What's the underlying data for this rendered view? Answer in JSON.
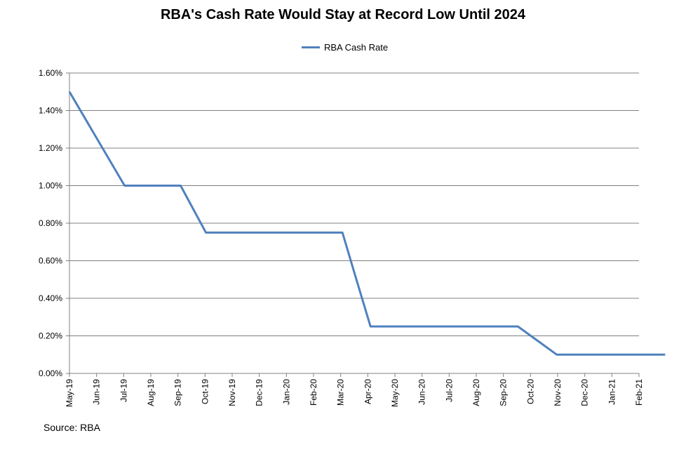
{
  "chart_data": {
    "type": "line",
    "title": "RBA's Cash Rate Would Stay at Record Low Until 2024",
    "xlabel": "",
    "ylabel": "",
    "categories": [
      "May-19",
      "Jun-19",
      "Jul-19",
      "Aug-19",
      "Sep-19",
      "Oct-19",
      "Nov-19",
      "Dec-19",
      "Jan-20",
      "Feb-20",
      "Mar-20",
      "Apr-20",
      "May-20",
      "Jun-20",
      "Jul-20",
      "Aug-20",
      "Sep-20",
      "Oct-20",
      "Nov-20",
      "Dec-20",
      "Jan-21",
      "Feb-21"
    ],
    "y_ticks": [
      "0.00%",
      "0.20%",
      "0.40%",
      "0.60%",
      "0.80%",
      "1.00%",
      "1.20%",
      "1.40%",
      "1.60%"
    ],
    "ylim": [
      0,
      1.6
    ],
    "grid": true,
    "legend_position": "top-center",
    "series": [
      {
        "name": "RBA Cash Rate",
        "color": "#4f81bd",
        "points": [
          {
            "x": "2019-05-01",
            "y": 1.5
          },
          {
            "x": "2019-07-02",
            "y": 1.0
          },
          {
            "x": "2019-09-04",
            "y": 1.0
          },
          {
            "x": "2019-10-02",
            "y": 0.75
          },
          {
            "x": "2020-03-03",
            "y": 0.75
          },
          {
            "x": "2020-03-19",
            "y": 0.5
          },
          {
            "x": "2020-04-04",
            "y": 0.25
          },
          {
            "x": "2020-09-17",
            "y": 0.25
          },
          {
            "x": "2020-10-31",
            "y": 0.1
          },
          {
            "x": "2021-02-28",
            "y": 0.1
          }
        ]
      }
    ]
  },
  "source": "Source: RBA"
}
